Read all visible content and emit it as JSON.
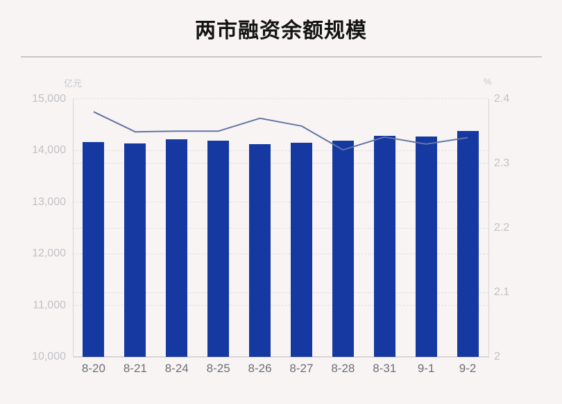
{
  "page": {
    "title": "两市融资余额规模"
  },
  "colors": {
    "background": "#f7f4f3",
    "bar": "#1539a0",
    "line": "#6474a5",
    "grid": "#e2e0e1",
    "axis": "#d8d6d7",
    "axis_tick_text": "#c2c1c6",
    "x_tick_text": "#6e6e76",
    "title_text": "#141414"
  },
  "chart_data": {
    "type": "bar",
    "subtype": "bar-plus-line-dual-axis",
    "title": "两市融资余额规模",
    "categories": [
      "8-20",
      "8-21",
      "8-24",
      "8-25",
      "8-26",
      "8-27",
      "8-28",
      "8-31",
      "9-1",
      "9-2"
    ],
    "series": [
      {
        "type": "bar",
        "axis": "left",
        "unit": "亿元",
        "color": "#1539a0",
        "values": [
          14165,
          14140,
          14220,
          14195,
          14130,
          14145,
          14185,
          14285,
          14275,
          14385
        ]
      },
      {
        "type": "line",
        "axis": "right",
        "unit": "%",
        "color": "#6474a5",
        "values": [
          2.38,
          2.349,
          2.35,
          2.35,
          2.37,
          2.358,
          2.321,
          2.341,
          2.33,
          2.34
        ]
      }
    ],
    "left_axis": {
      "unit_label": "亿元",
      "min": 10000,
      "max": 15000,
      "tick_step": 1000,
      "tick_labels": [
        "15,000",
        "14,000",
        "13,000",
        "12,000",
        "11,000",
        "10,000"
      ]
    },
    "right_axis": {
      "unit_label": "%",
      "min": 2,
      "max": 2.4,
      "tick_step": 0.1,
      "tick_labels": [
        "2.4",
        "2.3",
        "2.2",
        "2.1",
        "2"
      ]
    },
    "grid": "horizontal dashed lines at both left-axis and right-axis ticks",
    "legend": "none"
  }
}
